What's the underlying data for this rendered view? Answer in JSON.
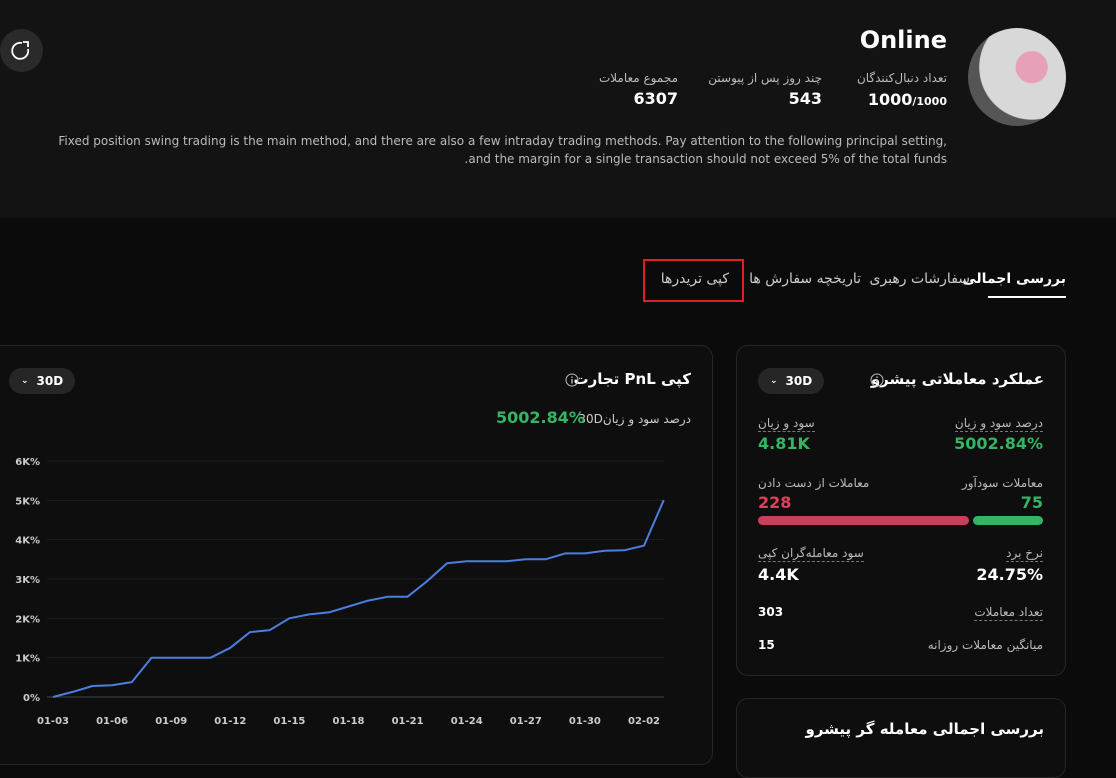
{
  "header": {
    "name": "Online",
    "stats": [
      {
        "label": "تعداد دنبال‌کنندگان",
        "value": "1000",
        "suffix": "/1000"
      },
      {
        "label": "چند روز پس از پیوستن",
        "value": "543"
      },
      {
        "label": "مجموع معاملات",
        "value": "6307"
      }
    ],
    "description": [
      "Fixed position swing trading is the main method, and there are also a few intraday trading methods. Pay attention to the following principal setting,",
      ".and the margin for a single transaction should not exceed 5% of the total funds"
    ]
  },
  "tabs": [
    "بررسی اجمالی",
    "سفارشات رهبری",
    "تاریخچه سفارش ها",
    "کپی تریدرها"
  ],
  "pnl_card": {
    "title": "کپی PnL تجارت",
    "period": "30D",
    "metric_label": "درصد سود و زیان",
    "metric_period": "30D",
    "metric_value": "5002.84%"
  },
  "chart_data": {
    "type": "line",
    "color": "#4a7fe0",
    "grid": true,
    "categories": [
      "01-03",
      null,
      null,
      "01-06",
      null,
      null,
      "01-09",
      null,
      null,
      "01-12",
      null,
      null,
      "01-15",
      null,
      null,
      "01-18",
      null,
      null,
      "01-21",
      null,
      null,
      "01-24",
      null,
      null,
      "01-27",
      null,
      null,
      "01-30",
      null,
      null,
      "02-02",
      null
    ],
    "values": [
      0,
      130,
      280,
      300,
      380,
      1000,
      1000,
      1000,
      1000,
      1250,
      1650,
      1700,
      2000,
      2100,
      2150,
      2300,
      2450,
      2550,
      2550,
      2950,
      3400,
      3450,
      3450,
      3450,
      3500,
      3500,
      3650,
      3650,
      3720,
      3730,
      3850,
      5002.84
    ],
    "ylim": [
      0,
      6000
    ],
    "yticks": [
      {
        "value": 0,
        "label": "0%"
      },
      {
        "value": 1000,
        "label": "1K%"
      },
      {
        "value": 2000,
        "label": "2K%"
      },
      {
        "value": 3000,
        "label": "3K%"
      },
      {
        "value": 4000,
        "label": "4K%"
      },
      {
        "value": 5000,
        "label": "5K%"
      },
      {
        "value": 6000,
        "label": "6K%"
      }
    ]
  },
  "performance_card": {
    "title": "عملکرد معاملاتی پیشرو",
    "period": "30D",
    "pnl_percent_label": "درصد سود و زیان",
    "pnl_percent": "5002.84%",
    "pnl_label": "سود و زیان",
    "pnl": "4.81K",
    "profitable_label": "معاملات سودآور",
    "profitable": 75,
    "losing_label": "معاملات از دست دادن",
    "losing": 228,
    "win_rate_label": "نرخ برد",
    "win_rate": "24.75%",
    "copy_profit_label": "سود معامله‌گران کپی",
    "copy_profit": "4.4K",
    "trades_label": "تعداد معاملات",
    "trades": "303",
    "daily_label": "میانگین معاملات روزانه",
    "daily": "15"
  },
  "next_card": {
    "title": "بررسی اجمالی معامله گر پیشرو"
  }
}
